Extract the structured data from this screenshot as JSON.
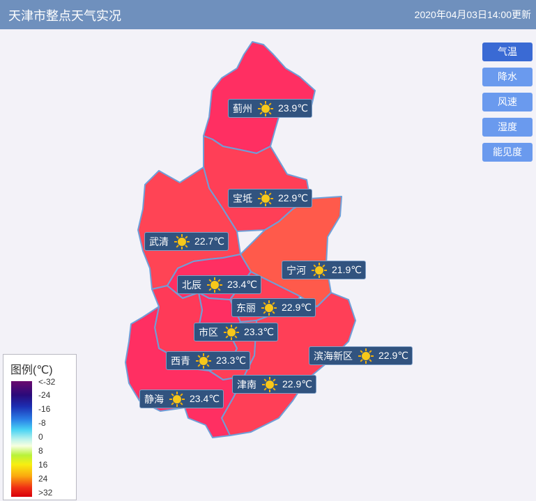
{
  "header": {
    "title": "天津市整点天气实况",
    "update_time": "2020年04月03日14:00更新"
  },
  "buttons": [
    {
      "label": "气温",
      "active": true
    },
    {
      "label": "降水",
      "active": false
    },
    {
      "label": "风速",
      "active": false
    },
    {
      "label": "湿度",
      "active": false
    },
    {
      "label": "能见度",
      "active": false
    }
  ],
  "stations": [
    {
      "name": "蓟州",
      "icon": "sun-icon",
      "temp": "23.9℃"
    },
    {
      "name": "宝坻",
      "icon": "sun-icon",
      "temp": "22.9℃"
    },
    {
      "name": "武清",
      "icon": "sun-icon",
      "temp": "22.7℃"
    },
    {
      "name": "宁河",
      "icon": "sun-icon",
      "temp": "21.9℃"
    },
    {
      "name": "北辰",
      "icon": "sun-icon",
      "temp": "23.4℃"
    },
    {
      "name": "东丽",
      "icon": "sun-icon",
      "temp": "22.9℃"
    },
    {
      "name": "市区",
      "icon": "sun-icon",
      "temp": "23.3℃"
    },
    {
      "name": "滨海新区",
      "icon": "sun-icon",
      "temp": "22.9℃"
    },
    {
      "name": "西青",
      "icon": "sun-icon",
      "temp": "23.3℃"
    },
    {
      "name": "津南",
      "icon": "sun-icon",
      "temp": "22.9℃"
    },
    {
      "name": "静海",
      "icon": "sun-icon",
      "temp": "23.4℃"
    }
  ],
  "legend": {
    "title": "图例(℃)",
    "ticks": [
      "<-32",
      "-24",
      "-16",
      "-8",
      "0",
      "8",
      "16",
      "24",
      ">32"
    ]
  },
  "colors": {
    "header_bg": "#6f90bd",
    "button_bg": "#6a9aee",
    "button_active_bg": "#3a6ad4",
    "label_bg": "#31537f",
    "region_border": "#6f9fd8",
    "region_hot": "#ff2f62",
    "region_warm": "#ff4455",
    "region_mild": "#ff5a4b"
  }
}
